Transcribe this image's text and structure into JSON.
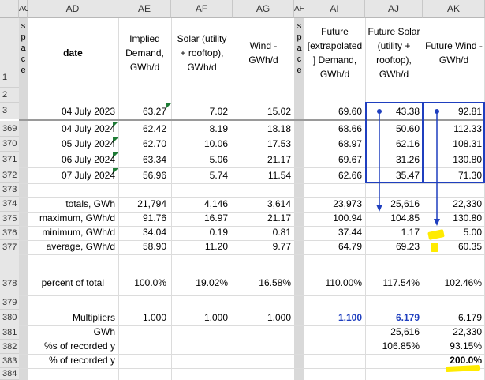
{
  "columns": [
    "AC",
    "AD",
    "AE",
    "AF",
    "AG",
    "AH",
    "AI",
    "AJ",
    "AK"
  ],
  "space_label": [
    "s",
    "p",
    "a",
    "c",
    "e"
  ],
  "headers": {
    "ad": "date",
    "ae": [
      "Implied",
      "Demand,",
      "GWh/d"
    ],
    "af": [
      "Solar (utility",
      "+ rooftop),",
      "GWh/d"
    ],
    "ag": [
      "Wind -",
      "GWh/d"
    ],
    "ai": [
      "Future",
      "[extrapolated",
      "] Demand,",
      "GWh/d"
    ],
    "aj": [
      "Future Solar",
      "(utility +",
      "rooftop),",
      "GWh/d"
    ],
    "ak": [
      "Future Wind -",
      "GWh/d"
    ]
  },
  "row_numbers": [
    "1",
    "2",
    "3",
    "369",
    "370",
    "371",
    "372",
    "373",
    "374",
    "375",
    "376",
    "377",
    "378",
    "379",
    "380",
    "381",
    "382",
    "383",
    "384"
  ],
  "data_rows": [
    {
      "row": "3",
      "date": "04 July 2023",
      "ae": "63.27",
      "af": "7.02",
      "ag": "15.02",
      "ai": "69.60",
      "aj": "43.38",
      "ak": "92.81"
    },
    {
      "row": "369",
      "date": "04 July 2024",
      "ae": "62.42",
      "af": "8.19",
      "ag": "18.18",
      "ai": "68.66",
      "aj": "50.60",
      "ak": "112.33"
    },
    {
      "row": "370",
      "date": "05 July 2024",
      "ae": "62.70",
      "af": "10.06",
      "ag": "17.53",
      "ai": "68.97",
      "aj": "62.16",
      "ak": "108.31"
    },
    {
      "row": "371",
      "date": "06 July 2024",
      "ae": "63.34",
      "af": "5.06",
      "ag": "21.17",
      "ai": "69.67",
      "aj": "31.26",
      "ak": "130.80"
    },
    {
      "row": "372",
      "date": "07 July 2024",
      "ae": "56.96",
      "af": "5.74",
      "ag": "11.54",
      "ai": "62.66",
      "aj": "35.47",
      "ak": "71.30"
    }
  ],
  "stats": [
    {
      "label": "totals, GWh",
      "ae": "21,794",
      "af": "4,146",
      "ag": "3,614",
      "ai": "23,973",
      "aj": "25,616",
      "ak": "22,330"
    },
    {
      "label": "maximum, GWh/d",
      "ae": "91.76",
      "af": "16.97",
      "ag": "21.17",
      "ai": "100.94",
      "aj": "104.85",
      "ak": "130.80"
    },
    {
      "label": "minimum, GWh/d",
      "ae": "34.04",
      "af": "0.19",
      "ag": "0.81",
      "ai": "37.44",
      "aj": "1.17",
      "ak": "5.00"
    },
    {
      "label": "average, GWh/d",
      "ae": "58.90",
      "af": "11.20",
      "ag": "9.77",
      "ai": "64.79",
      "aj": "69.23",
      "ak": "60.35"
    }
  ],
  "percent": {
    "label": "percent of total",
    "ae": "100.0%",
    "af": "19.02%",
    "ag": "16.58%",
    "ai": "110.00%",
    "aj": "117.54%",
    "ak": "102.46%"
  },
  "multipliers": {
    "label": "Multipliers",
    "ae": "1.000",
    "af": "1.000",
    "ag": "1.000",
    "ai": "1.100",
    "aj": "6.179",
    "ak": "6.179"
  },
  "gwh": {
    "label": "GWh",
    "aj": "25,616",
    "ak": "22,330"
  },
  "pct_recorded_1": {
    "label": "%s of recorded y",
    "aj": "106.85%",
    "ak": "93.15%"
  },
  "pct_recorded_2": {
    "label": "% of recorded y",
    "ak": "200.0%"
  },
  "colors": {
    "accent_blue": "#1f3fbf",
    "highlight": "#ffeb00",
    "header_bg": "#e6e6e6",
    "comment_marker": "#1e7b35"
  }
}
